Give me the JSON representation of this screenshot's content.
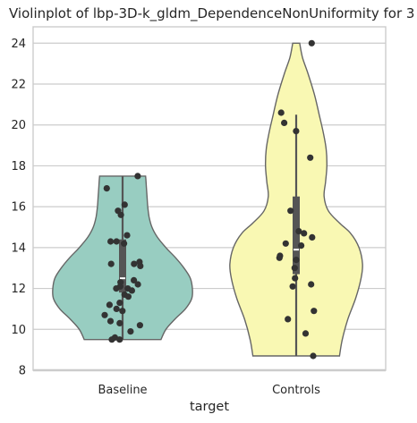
{
  "chart_data": {
    "type": "violin",
    "title": "Violinplot of lbp-3D-k_gldm_DependenceNonUniformity for 3",
    "xlabel": "target",
    "ylabel": "",
    "ylim": [
      8,
      24.8
    ],
    "yticks": [
      8,
      10,
      12,
      14,
      16,
      18,
      20,
      22,
      24
    ],
    "categories": [
      "Baseline",
      "Controls"
    ],
    "grid": "horizontal",
    "violin_cut": 0,
    "colors": {
      "Baseline": "#98cdc1",
      "Controls": "#f9f8b3",
      "violin_edge": "#666666",
      "box": "#555555",
      "median": "#ffffff",
      "points": "#333333",
      "grid": "#cccccc",
      "spine": "#cccccc"
    },
    "series": [
      {
        "category": "Baseline",
        "min": 9.5,
        "q1": 11.8,
        "median": 12.5,
        "q3": 14.4,
        "max": 17.5,
        "points": [
          17.5,
          16.9,
          16.1,
          15.8,
          15.6,
          14.6,
          14.3,
          14.3,
          14.2,
          13.3,
          13.2,
          13.2,
          13.1,
          12.4,
          12.3,
          12.2,
          12.1,
          12.0,
          12.0,
          11.9,
          11.7,
          11.6,
          11.3,
          11.2,
          11.0,
          10.9,
          10.7,
          10.4,
          10.3,
          10.2,
          9.9,
          9.6,
          9.5,
          9.5
        ],
        "density": [
          [
            9.5,
            0.55
          ],
          [
            10.0,
            0.62
          ],
          [
            10.5,
            0.75
          ],
          [
            11.0,
            0.9
          ],
          [
            11.5,
            0.99
          ],
          [
            12.0,
            1.0
          ],
          [
            12.5,
            0.97
          ],
          [
            13.0,
            0.88
          ],
          [
            13.5,
            0.76
          ],
          [
            14.0,
            0.62
          ],
          [
            14.5,
            0.5
          ],
          [
            15.0,
            0.42
          ],
          [
            15.5,
            0.38
          ],
          [
            16.0,
            0.36
          ],
          [
            16.5,
            0.35
          ],
          [
            17.0,
            0.34
          ],
          [
            17.5,
            0.33
          ]
        ]
      },
      {
        "category": "Controls",
        "min": 8.7,
        "q1": 12.7,
        "median": 13.9,
        "q3": 16.5,
        "max": 20.5,
        "points": [
          24.0,
          20.6,
          20.1,
          19.7,
          18.4,
          15.8,
          14.8,
          14.7,
          14.5,
          14.2,
          14.1,
          13.6,
          13.5,
          13.4,
          13.0,
          12.5,
          12.2,
          12.1,
          10.9,
          10.5,
          9.8,
          8.7
        ],
        "density": [
          [
            8.7,
            0.62
          ],
          [
            9.5,
            0.66
          ],
          [
            10.5,
            0.74
          ],
          [
            11.5,
            0.85
          ],
          [
            12.5,
            0.93
          ],
          [
            13.2,
            0.95
          ],
          [
            14.0,
            0.9
          ],
          [
            14.7,
            0.78
          ],
          [
            15.2,
            0.62
          ],
          [
            15.8,
            0.46
          ],
          [
            16.5,
            0.4
          ],
          [
            17.2,
            0.42
          ],
          [
            18.0,
            0.44
          ],
          [
            18.8,
            0.43
          ],
          [
            19.6,
            0.39
          ],
          [
            20.5,
            0.33
          ],
          [
            21.5,
            0.26
          ],
          [
            22.5,
            0.17
          ],
          [
            23.3,
            0.09
          ],
          [
            24.0,
            0.05
          ]
        ]
      }
    ]
  }
}
